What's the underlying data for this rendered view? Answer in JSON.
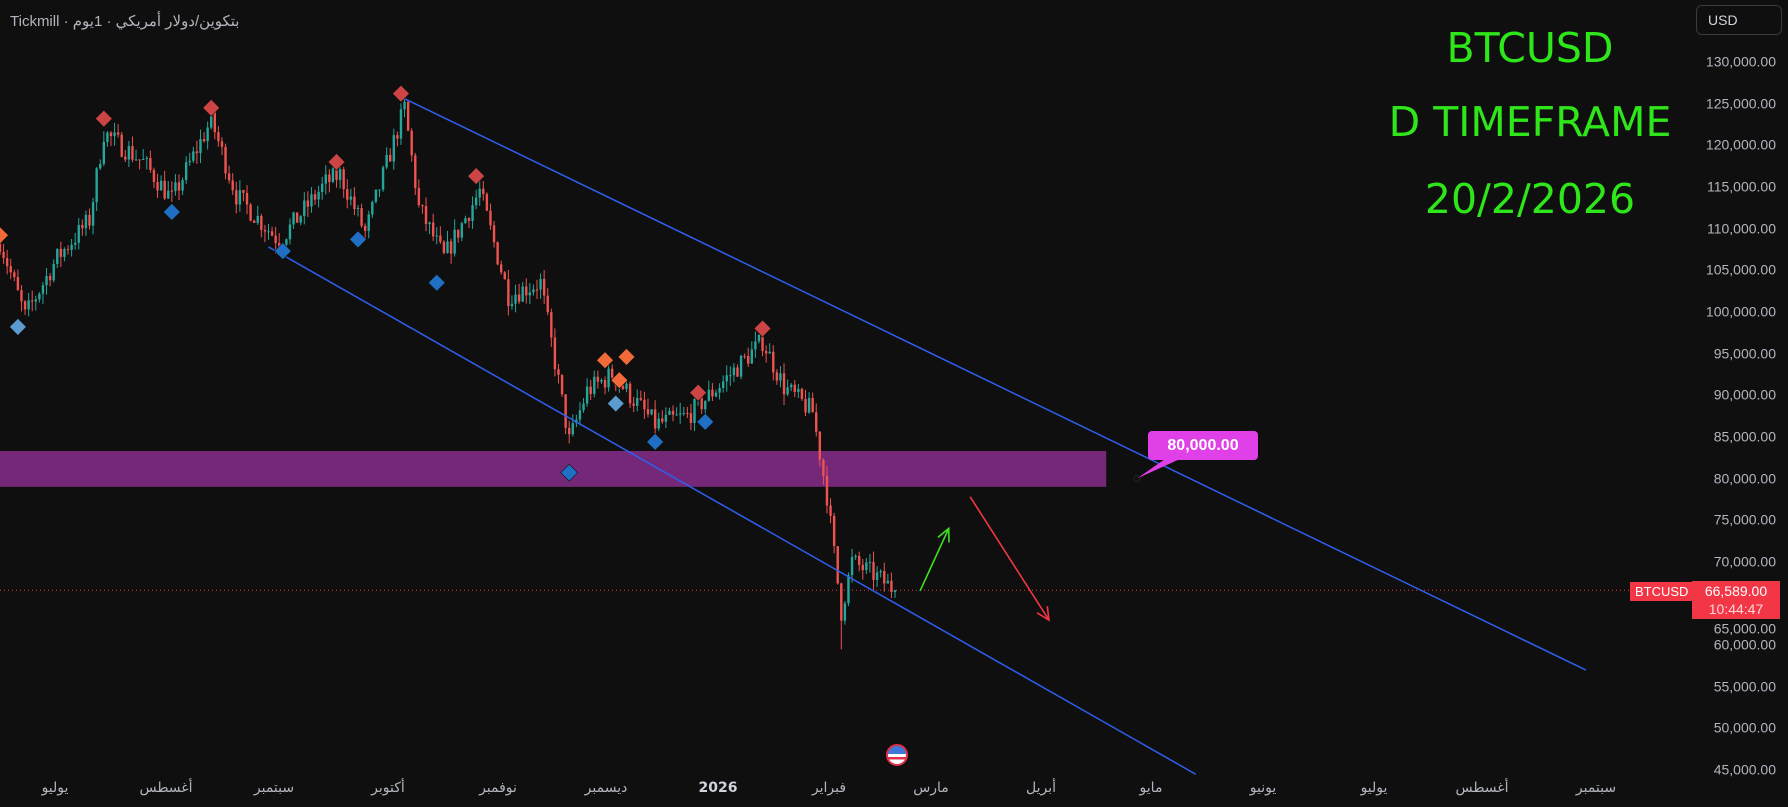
{
  "header": {
    "symbol_title": "Tickmill · بتكوين/دولار أمريكي · 1يوم",
    "currency_button": "USD"
  },
  "annotations": {
    "line1": "BTCUSD",
    "line2": "D TIMEFRAME",
    "line3": "20/2/2026",
    "zone_label": "80,000.00"
  },
  "price_axis": {
    "labels": [
      "130,000.00",
      "125,000.00",
      "120,000.00",
      "115,000.00",
      "110,000.00",
      "105,000.00",
      "100,000.00",
      "95,000.00",
      "90,000.00",
      "85,000.00",
      "80,000.00",
      "75,000.00",
      "70,000.00",
      "65,000.00",
      "60,000.00",
      "55,000.00",
      "50,000.00",
      "45,000.00"
    ],
    "current_symbol": "BTCUSD",
    "current_price": "66,589.00",
    "countdown": "10:44:47"
  },
  "time_axis": {
    "labels": [
      "يوليو",
      "أغسطس",
      "سبتمبر",
      "أكتوبر",
      "نوفمبر",
      "ديسمبر",
      "2026",
      "فبراير",
      "مارس",
      "أبريل",
      "مايو",
      "يونيو",
      "يوليو",
      "أغسطس",
      "سبتمبر"
    ]
  },
  "colors": {
    "up": "#26a69a",
    "down": "#ef5350",
    "channel": "#2f5ff0",
    "zone": "#7b2a7d",
    "text_green": "#2ee61a",
    "marker_red": "#cc4444",
    "marker_blue": "#1f6fc4",
    "marker_orange": "#f26a3a",
    "marker_lightblue": "#5b9bd0"
  },
  "chart_data": {
    "type": "candlestick",
    "symbol": "BTCUSD",
    "timeframe": "D",
    "start_date": "2025-06-15",
    "ylim": [
      45000,
      130000
    ],
    "waypoints": [
      [
        "2025-06-15",
        108500
      ],
      [
        "2025-06-22",
        99500
      ],
      [
        "2025-07-01",
        106500
      ],
      [
        "2025-07-10",
        111000
      ],
      [
        "2025-07-14",
        121500
      ],
      [
        "2025-07-25",
        118000
      ],
      [
        "2025-08-02",
        113500
      ],
      [
        "2025-08-13",
        123000
      ],
      [
        "2025-08-20",
        114000
      ],
      [
        "2025-09-01",
        108500
      ],
      [
        "2025-09-14",
        115500
      ],
      [
        "2025-09-18",
        116500
      ],
      [
        "2025-09-25",
        109500
      ],
      [
        "2025-10-06",
        124500
      ],
      [
        "2025-10-10",
        112500
      ],
      [
        "2025-10-17",
        106500
      ],
      [
        "2025-10-27",
        114500
      ],
      [
        "2025-11-04",
        102000
      ],
      [
        "2025-11-13",
        103500
      ],
      [
        "2025-11-21",
        84500
      ],
      [
        "2025-11-26",
        90500
      ],
      [
        "2025-12-03",
        92500
      ],
      [
        "2025-12-08",
        90000
      ],
      [
        "2025-12-15",
        86500
      ],
      [
        "2025-12-24",
        87500
      ],
      [
        "2025-12-29",
        89500
      ],
      [
        "2026-01-05",
        92500
      ],
      [
        "2026-01-14",
        96500
      ],
      [
        "2026-01-20",
        91000
      ],
      [
        "2026-01-28",
        88000
      ],
      [
        "2026-02-01",
        78000
      ],
      [
        "2026-02-05",
        64000
      ],
      [
        "2026-02-08",
        70000
      ],
      [
        "2026-02-14",
        68500
      ],
      [
        "2026-02-20",
        66589
      ]
    ],
    "markers": [
      {
        "date": "2025-06-15",
        "price": 109200,
        "kind": "orange"
      },
      {
        "date": "2025-06-20",
        "price": 98200,
        "kind": "lightblue"
      },
      {
        "date": "2025-07-14",
        "price": 123200,
        "kind": "red"
      },
      {
        "date": "2025-08-02",
        "price": 112000,
        "kind": "blue"
      },
      {
        "date": "2025-08-13",
        "price": 124500,
        "kind": "red"
      },
      {
        "date": "2025-09-02",
        "price": 107300,
        "kind": "blue"
      },
      {
        "date": "2025-09-17",
        "price": 118000,
        "kind": "red"
      },
      {
        "date": "2025-09-23",
        "price": 108700,
        "kind": "blue"
      },
      {
        "date": "2025-10-05",
        "price": 126200,
        "kind": "red"
      },
      {
        "date": "2025-10-15",
        "price": 103500,
        "kind": "blue"
      },
      {
        "date": "2025-10-26",
        "price": 116300,
        "kind": "red"
      },
      {
        "date": "2025-11-21",
        "price": 80700,
        "kind": "blue"
      },
      {
        "date": "2025-12-01",
        "price": 94200,
        "kind": "orange"
      },
      {
        "date": "2025-12-04",
        "price": 89000,
        "kind": "lightblue"
      },
      {
        "date": "2025-12-05",
        "price": 91800,
        "kind": "orange"
      },
      {
        "date": "2025-12-07",
        "price": 94600,
        "kind": "orange"
      },
      {
        "date": "2025-12-15",
        "price": 84400,
        "kind": "blue"
      },
      {
        "date": "2025-12-27",
        "price": 90300,
        "kind": "red"
      },
      {
        "date": "2025-12-29",
        "price": 86800,
        "kind": "blue"
      },
      {
        "date": "2026-01-14",
        "price": 98000,
        "kind": "red"
      }
    ],
    "channel_upper": [
      [
        "2025-10-06",
        125600
      ],
      [
        "2026-09-01",
        57000
      ]
    ],
    "channel_lower": [
      [
        "2025-08-29",
        107800
      ],
      [
        "2026-05-15",
        44500
      ]
    ],
    "zone": {
      "from": "2025-06-15",
      "to": "2026-04-20",
      "price_low": 79000,
      "price_high": 83300,
      "label_price": 80000
    },
    "arrows": [
      {
        "color": "green",
        "from": [
          "2026-02-27",
          66500
        ],
        "to": [
          "2026-03-07",
          74000
        ]
      },
      {
        "color": "red",
        "from": [
          "2026-03-13",
          77800
        ],
        "to": [
          "2026-04-04",
          63000
        ]
      }
    ],
    "current_price": 66589
  }
}
